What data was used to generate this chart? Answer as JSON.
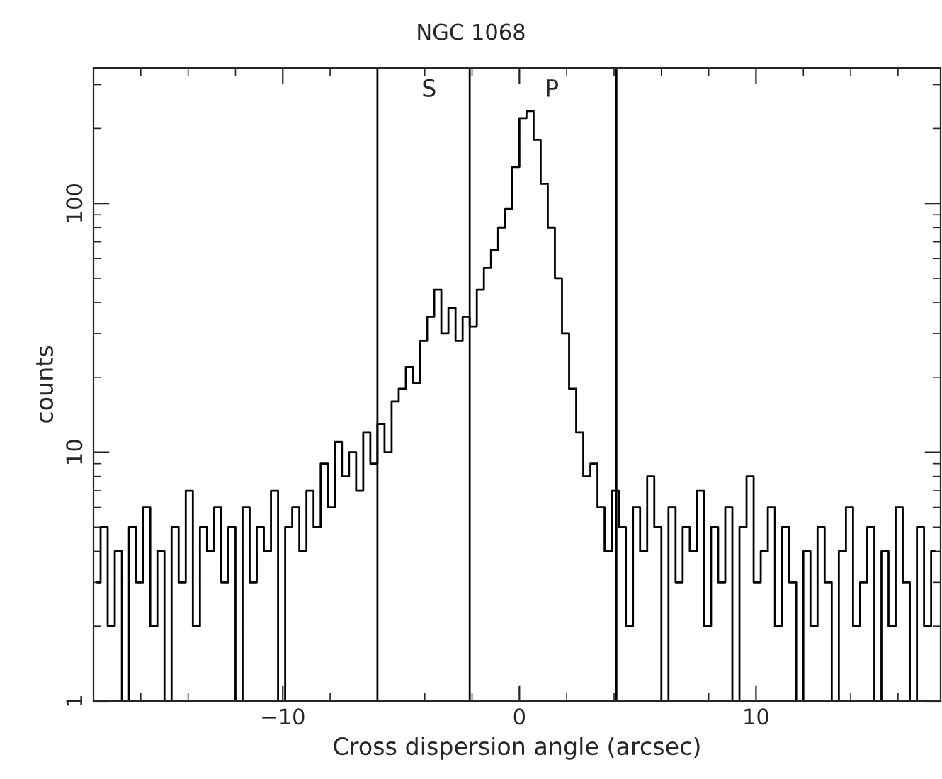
{
  "chart_data": {
    "type": "step",
    "title": "NGC 1068",
    "xlabel": "Cross dispersion angle (arcsec)",
    "ylabel": "counts",
    "x": [
      -17.85,
      -17.55,
      -17.25,
      -16.95,
      -16.65,
      -16.35,
      -16.05,
      -15.75,
      -15.45,
      -15.15,
      -14.85,
      -14.55,
      -14.25,
      -13.95,
      -13.65,
      -13.35,
      -13.05,
      -12.75,
      -12.45,
      -12.15,
      -11.85,
      -11.55,
      -11.25,
      -10.95,
      -10.65,
      -10.35,
      -10.05,
      -9.75,
      -9.45,
      -9.15,
      -8.85,
      -8.55,
      -8.25,
      -7.95,
      -7.65,
      -7.35,
      -7.05,
      -6.75,
      -6.45,
      -6.15,
      -5.85,
      -5.55,
      -5.25,
      -4.95,
      -4.65,
      -4.35,
      -4.05,
      -3.75,
      -3.45,
      -3.15,
      -2.85,
      -2.55,
      -2.25,
      -1.95,
      -1.65,
      -1.35,
      -1.05,
      -0.75,
      -0.45,
      -0.15,
      0.15,
      0.45,
      0.75,
      1.05,
      1.35,
      1.65,
      1.95,
      2.25,
      2.55,
      2.85,
      3.15,
      3.45,
      3.75,
      4.05,
      4.35,
      4.65,
      4.95,
      5.25,
      5.55,
      5.85,
      6.15,
      6.45,
      6.75,
      7.05,
      7.35,
      7.65,
      7.95,
      8.25,
      8.55,
      8.85,
      9.15,
      9.45,
      9.75,
      10.05,
      10.35,
      10.65,
      10.95,
      11.25,
      11.55,
      11.85,
      12.15,
      12.45,
      12.75,
      13.05,
      13.35,
      13.65,
      13.95,
      14.25,
      14.55,
      14.85,
      15.15,
      15.45,
      15.75,
      16.05,
      16.35,
      16.65,
      16.95,
      17.25,
      17.55
    ],
    "series": [
      {
        "color": "#000000",
        "values": [
          3,
          5,
          2,
          4,
          1,
          5,
          3,
          6,
          2,
          4,
          1,
          5,
          3,
          7,
          2,
          5,
          4,
          6,
          3,
          5,
          1,
          6,
          3,
          5,
          4,
          7,
          1,
          5,
          6,
          4,
          7,
          5,
          9,
          6,
          11,
          8,
          10,
          7,
          12,
          9,
          13,
          10,
          16,
          18,
          22,
          19,
          28,
          35,
          45,
          30,
          38,
          28,
          35,
          32,
          45,
          55,
          65,
          80,
          95,
          140,
          220,
          235,
          180,
          120,
          80,
          50,
          30,
          18,
          12,
          8,
          9,
          6,
          4,
          7,
          5,
          2,
          6,
          4,
          8,
          5,
          1,
          6,
          3,
          5,
          4,
          7,
          2,
          5,
          3,
          6,
          1,
          5,
          8,
          3,
          4,
          6,
          2,
          5,
          3,
          1,
          4,
          2,
          5,
          3,
          1,
          4,
          6,
          2,
          3,
          5,
          1,
          4,
          2,
          6,
          3,
          1,
          5,
          2,
          4
        ]
      }
    ],
    "log": "y",
    "xlim": [
      -18,
      17.8
    ],
    "ylim": [
      1,
      350
    ],
    "xticks": [
      -10,
      0,
      10
    ],
    "yticks": [
      1,
      10,
      100
    ],
    "ref_lines": [
      {
        "axis": "x",
        "value": -6,
        "color": "#000000"
      },
      {
        "axis": "x",
        "value": -2.1,
        "color": "#000000"
      },
      {
        "axis": "x",
        "value": 4.1,
        "color": "#000000"
      }
    ],
    "annotations": [
      "S",
      "P"
    ]
  }
}
